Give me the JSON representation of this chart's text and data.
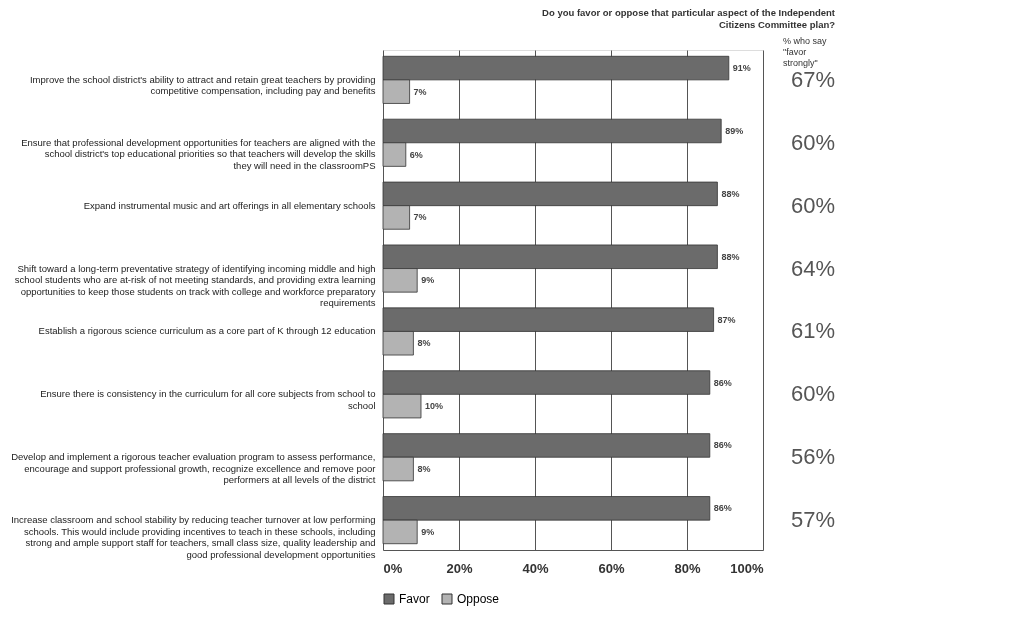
{
  "chart_data": {
    "type": "bar",
    "orientation": "horizontal",
    "title": "Do you favor or oppose that particular aspect of the Independent Citizens Committee plan?",
    "categories": [
      "Improve the school district's ability to attract and retain great teachers by providing competitive compensation, including pay and benefits",
      "Ensure that professional development opportunities for teachers are aligned with the school district's top educational priorities so that teachers will develop the skills they will need in the classroomPS",
      "Expand instrumental music and art offerings in all elementary schools",
      "Shift toward a long-term preventative strategy of identifying incoming middle and high school students who are at-risk of not meeting standards, and providing extra learning opportunities to keep those students on track with college and workforce preparatory requirements",
      "Establish a rigorous science curriculum as a core part of K through 12 education",
      "Ensure there is consistency in the curriculum for all core subjects from school to school",
      "Develop and implement a rigorous teacher evaluation program to assess performance, encourage and support professional growth, recognize excellence and remove poor performers at all levels of the district",
      "Increase classroom and school stability by reducing teacher turnover at low performing schools.  This would include providing incentives to teach in these schools, including strong and ample support staff for teachers, small class size, quality leadership and good professional development opportunities"
    ],
    "series": [
      {
        "name": "Favor",
        "color": "#6b6b6b",
        "values": [
          91,
          89,
          88,
          88,
          87,
          86,
          86,
          86
        ],
        "value_labels": [
          "91%",
          "89%",
          "88%",
          "88%",
          "87%",
          "86%",
          "86%",
          "86%"
        ]
      },
      {
        "name": "Oppose",
        "color": "#b3b3b3",
        "values": [
          7,
          6,
          7,
          9,
          8,
          10,
          8,
          9
        ],
        "value_labels": [
          "7%",
          "6%",
          "7%",
          "9%",
          "8%",
          "10%",
          "8%",
          "9%"
        ]
      }
    ],
    "xlim": [
      0,
      100
    ],
    "xticks": [
      {
        "value": 0,
        "label": "0%"
      },
      {
        "value": 20,
        "label": "20%"
      },
      {
        "value": 40,
        "label": "40%"
      },
      {
        "value": 60,
        "label": "60%"
      },
      {
        "value": 80,
        "label": "80%"
      },
      {
        "value": 100,
        "label": "100%"
      }
    ],
    "grid": "x",
    "legend": "bottom",
    "annotations": [
      "% who say \"favor strongly\"",
      "67%",
      "60%",
      "60%",
      "64%",
      "61%",
      "60%",
      "56%",
      "57%"
    ]
  }
}
